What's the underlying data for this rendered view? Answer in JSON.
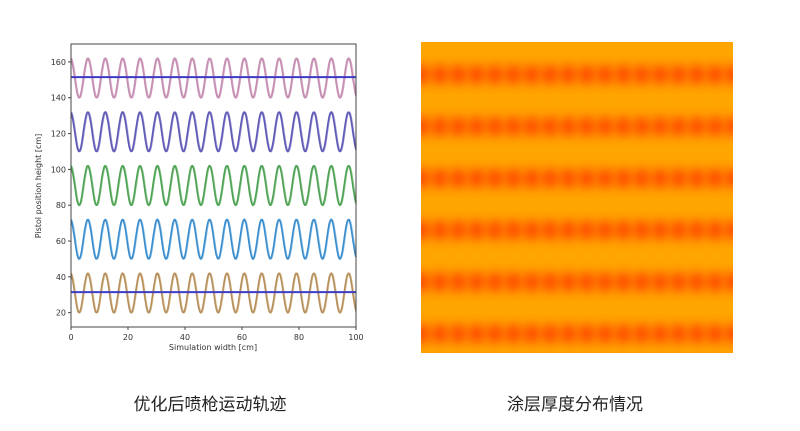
{
  "chart_data": [
    {
      "type": "line",
      "xlabel": "Simulation width [cm]",
      "ylabel": "Pistol position height [cm]",
      "xlim": [
        0,
        100
      ],
      "ylim": [
        12,
        170
      ],
      "xticks": [
        0,
        20,
        40,
        60,
        80,
        100
      ],
      "yticks": [
        20,
        40,
        60,
        80,
        100,
        120,
        140,
        160
      ],
      "grid": false,
      "series": [
        {
          "kind": "sine",
          "center": 151,
          "amplitude": 11,
          "period_cm": 6.1,
          "colors": [
            "#d7a9c6",
            "#c58fb2"
          ]
        },
        {
          "kind": "sine",
          "center": 121,
          "amplitude": 11,
          "period_cm": 6.1,
          "colors": [
            "#9c95d3",
            "#5f5ab6"
          ]
        },
        {
          "kind": "sine",
          "center": 91,
          "amplitude": 11,
          "period_cm": 6.1,
          "colors": [
            "#8fc98f",
            "#4fa255"
          ]
        },
        {
          "kind": "sine",
          "center": 61,
          "amplitude": 11,
          "period_cm": 6.1,
          "colors": [
            "#92c7ec",
            "#3b8ccc"
          ]
        },
        {
          "kind": "sine",
          "center": 31,
          "amplitude": 11,
          "period_cm": 6.1,
          "colors": [
            "#dcc195",
            "#b58f5e"
          ]
        },
        {
          "kind": "hline",
          "y": 151.5,
          "colors": [
            "#3b3bc4"
          ]
        },
        {
          "kind": "hline",
          "y": 31.5,
          "colors": [
            "#3b3bc4"
          ]
        }
      ]
    },
    {
      "type": "heatmap",
      "colormap": [
        "#ffa500",
        "#ff5a00"
      ],
      "bands_vertical": 6,
      "cycles_horizontal": 17
    }
  ],
  "captions": {
    "left": "优化后喷枪运动轨迹",
    "right": "涂层厚度分布情况"
  }
}
